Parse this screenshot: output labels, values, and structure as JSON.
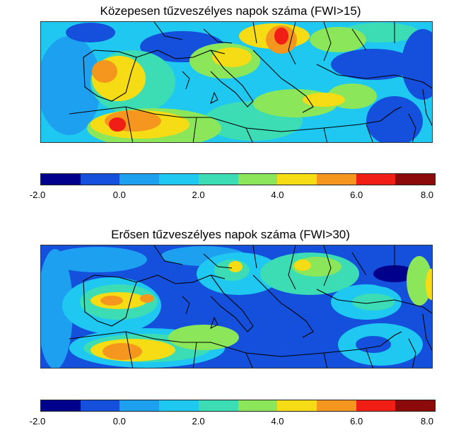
{
  "panels": [
    {
      "title": "Közepesen tűzveszélyes napok száma (FWI>15)"
    },
    {
      "title": "Erősen tűzveszélyes napok száma (FWI>30)"
    }
  ],
  "colorbar": {
    "ticks": [
      "-2.0",
      "0.0",
      "2.0",
      "4.0",
      "6.0",
      "8.0"
    ],
    "colors": [
      "#00008c",
      "#1450dc",
      "#1ea0f0",
      "#1ec8f0",
      "#3cdcb4",
      "#8ce65a",
      "#f5dc14",
      "#f5961e",
      "#f01e14",
      "#8c0a0a"
    ]
  },
  "legend_colors": {
    "water": "#1450dc",
    "low": "#1ea0f0",
    "mid": "#3cdcb4",
    "warm": "#f5dc14",
    "hot": "#f5961e",
    "peak": "#f01e14"
  }
}
